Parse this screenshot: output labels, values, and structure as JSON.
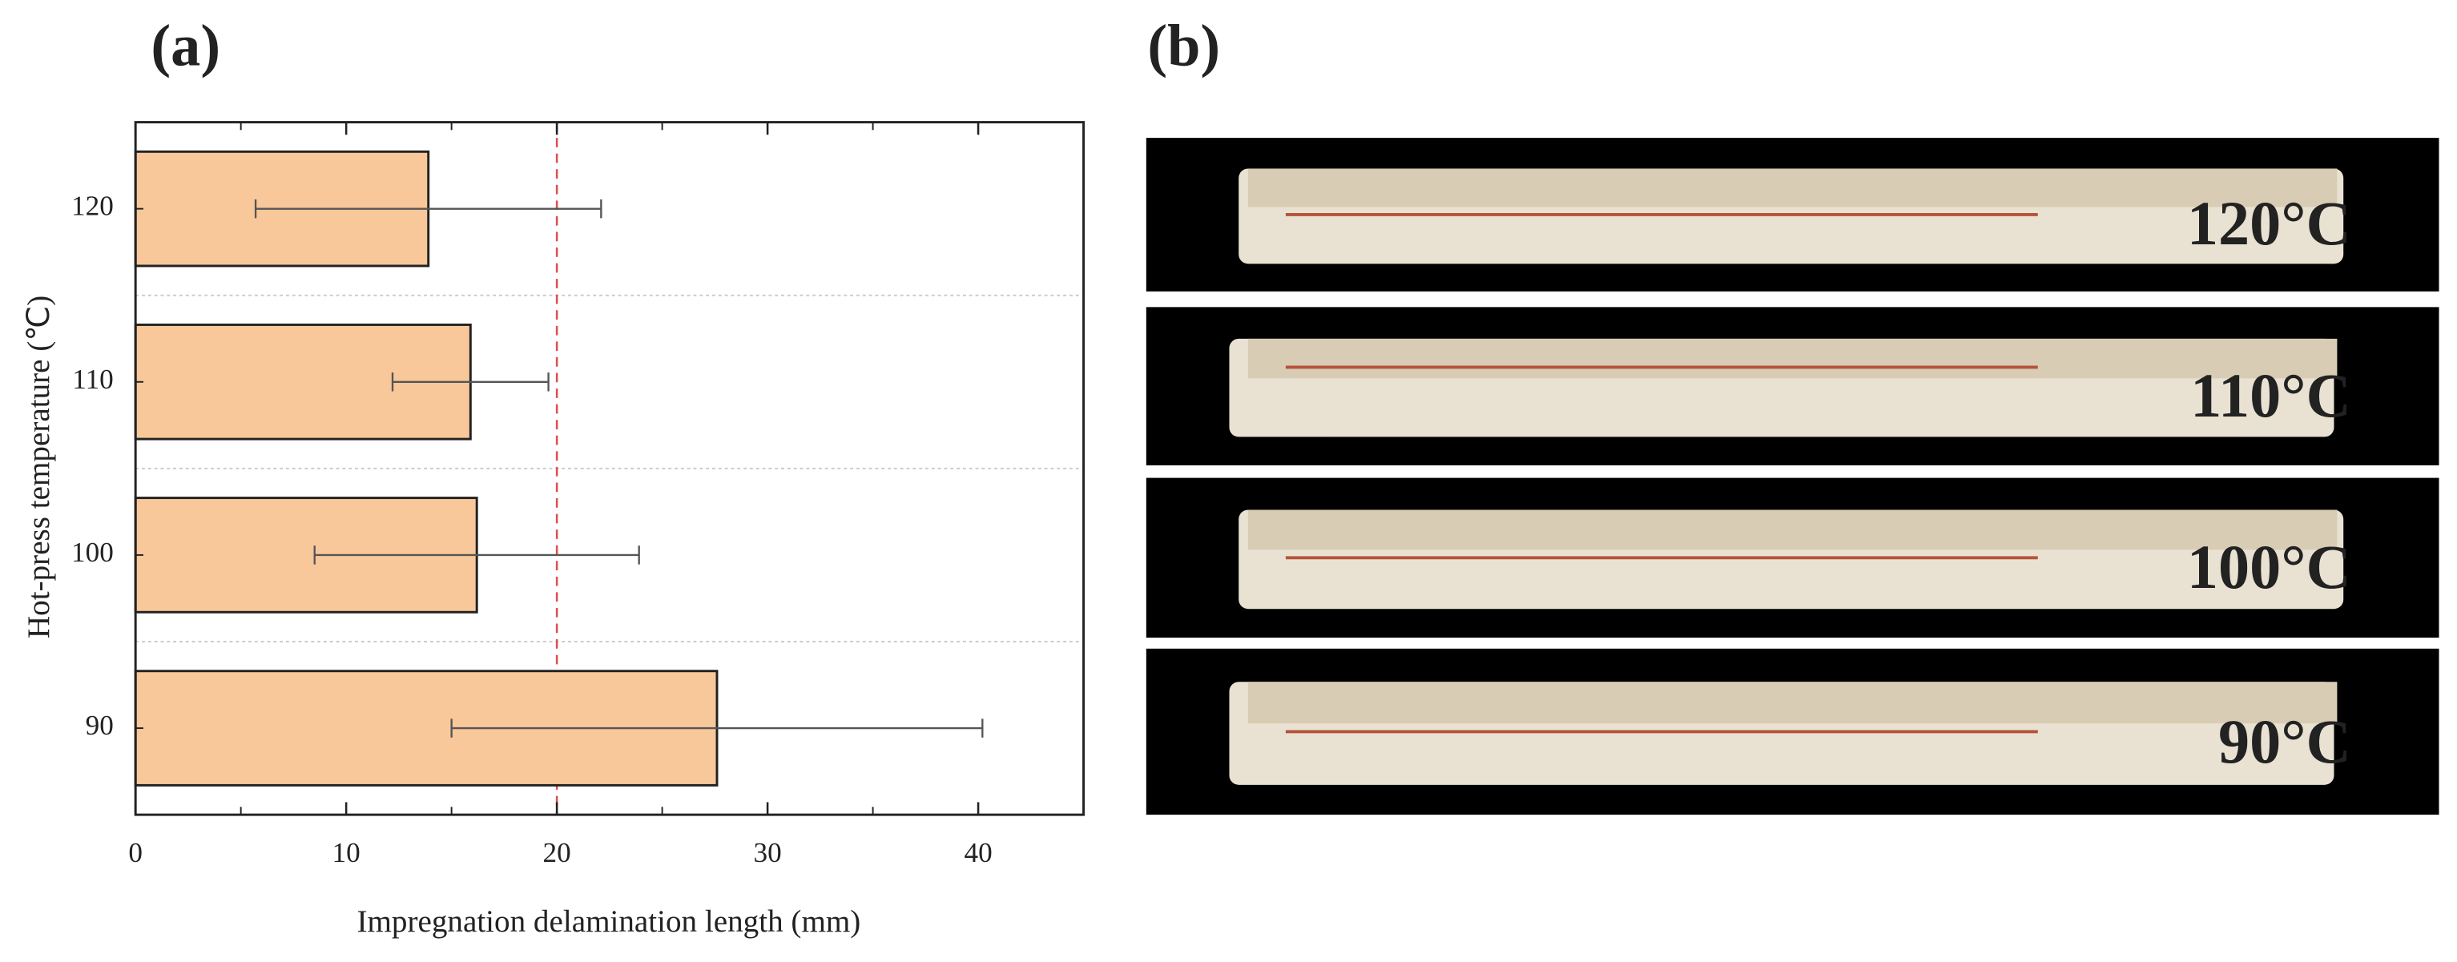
{
  "panel_a_label": "(a)",
  "panel_b_label": "(b)",
  "chart_data": {
    "type": "bar",
    "orientation": "horizontal",
    "categories": [
      "120",
      "110",
      "100",
      "90"
    ],
    "values": [
      13.9,
      15.9,
      16.2,
      27.6
    ],
    "errors": [
      8.2,
      3.7,
      7.7,
      12.6
    ],
    "color": "#f8c89a",
    "xlim": [
      0,
      45
    ],
    "xticks": [
      0,
      10,
      20,
      30,
      40
    ],
    "xlabel": "Impregnation delamination length (mm)",
    "ylabel": "Hot-press temperature (℃)",
    "reference_line": {
      "value": 20,
      "color": "#d9534f"
    }
  },
  "photo_labels": [
    "120°C",
    "110°C",
    "100°C",
    "90°C"
  ]
}
